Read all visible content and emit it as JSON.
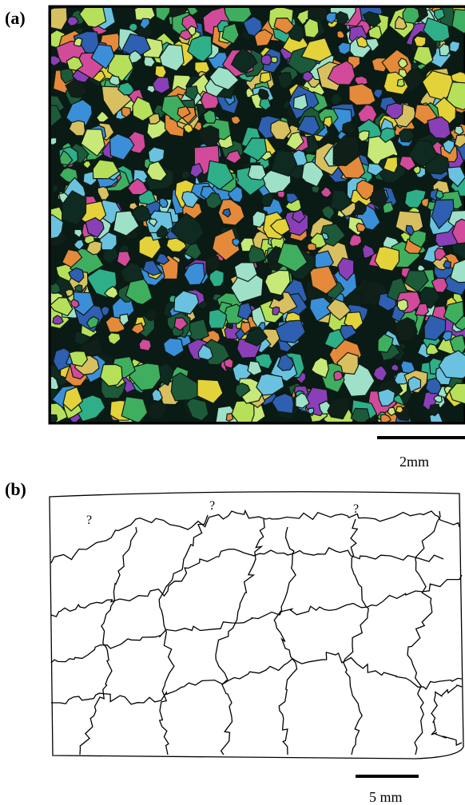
{
  "panels": [
    {
      "label": "(a)",
      "scale_bar": "2mm"
    },
    {
      "label": "(b)",
      "annotations": [
        "?",
        "?",
        "?"
      ],
      "scale_bar": "5 mm"
    }
  ]
}
